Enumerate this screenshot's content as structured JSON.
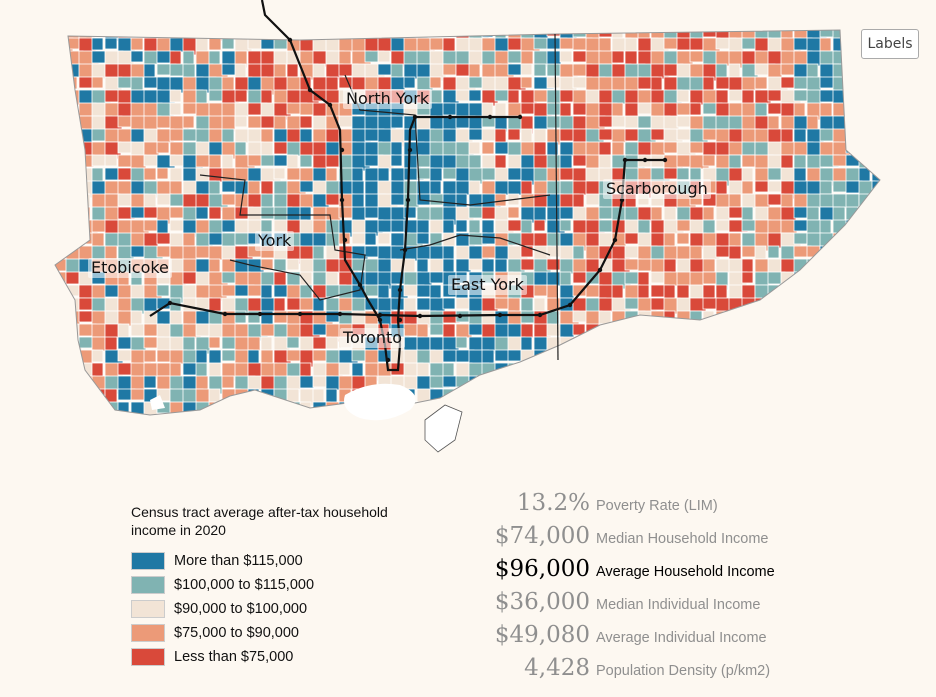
{
  "map": {
    "district_labels": [
      {
        "id": "north-york",
        "text": "North York"
      },
      {
        "id": "scarborough",
        "text": "Scarborough"
      },
      {
        "id": "york",
        "text": "York"
      },
      {
        "id": "etobicoke",
        "text": "Etobicoke"
      },
      {
        "id": "east-york",
        "text": "East York"
      },
      {
        "id": "toronto",
        "text": "Toronto"
      }
    ],
    "labels_button": "Labels",
    "colors": {
      "more_than_115k": "#1f78a4",
      "100k_115k": "#80b3b2",
      "90k_100k": "#f2e4d6",
      "75k_90k": "#ec9a78",
      "less_than_75k": "#d9493a",
      "transit_line": "#111111",
      "water": "#ffffff"
    }
  },
  "legend": {
    "title": "Census tract average after-tax household income in 2020",
    "items": [
      {
        "label": "More than $115,000",
        "color": "#1f78a4"
      },
      {
        "label": "$100,000 to $115,000",
        "color": "#80b3b2"
      },
      {
        "label": "$90,000 to $100,000",
        "color": "#f2e4d6"
      },
      {
        "label": "$75,000 to $90,000",
        "color": "#ec9a78"
      },
      {
        "label": "Less than $75,000",
        "color": "#d9493a"
      }
    ]
  },
  "stats": [
    {
      "value": "13.2%",
      "label": "Poverty Rate (LIM)",
      "active": false
    },
    {
      "value": "$74,000",
      "label": "Median Household Income",
      "active": false
    },
    {
      "value": "$96,000",
      "label": "Average Household Income",
      "active": true
    },
    {
      "value": "$36,000",
      "label": "Median Individual Income",
      "active": false
    },
    {
      "value": "$49,080",
      "label": "Average Individual Income",
      "active": false
    },
    {
      "value": "4,428",
      "label": "Population Density (p/km2)",
      "active": false
    }
  ]
}
